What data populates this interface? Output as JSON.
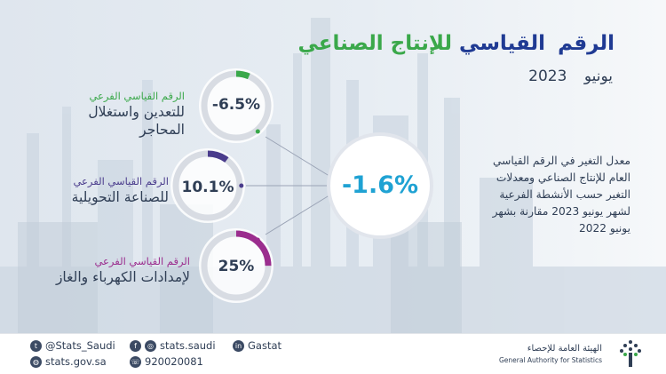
{
  "title": {
    "part1": "الرقم",
    "part2": "القياسي",
    "part3": "للإنتاج الصناعي"
  },
  "subtitle": {
    "month": "يونيو",
    "year": "2023"
  },
  "description": [
    "معدل التغير في الرقم القياسي",
    "العام للإنتاج الصناعي ومعدلات",
    "التغير حسب الأنشطة الفرعية",
    "لشهر يونيو 2023 مقارنة بشهر",
    "يونيو 2022"
  ],
  "main_value": "-1.6%",
  "sub_indices": [
    {
      "small": "الرقم القياسي الفرعي",
      "main1": "للتعدين واستغلال",
      "main2": "المحاجر",
      "value": "-6.5%",
      "fill": 0.065,
      "color": "#3aa84a"
    },
    {
      "small": "الرقم القياسي الفرعي",
      "main1": "للصناعة التحويلية",
      "main2": "",
      "value": "10.1%",
      "fill": 0.101,
      "color": "#4a3c8c"
    },
    {
      "small": "الرقم القياسي الفرعي",
      "main1": "لإمدادات الكهرباء والغاز",
      "main2": "",
      "value": "25%",
      "fill": 0.25,
      "color": "#9b2d8e"
    }
  ],
  "colors": {
    "main_value": "#1fa2d3",
    "ring_track": "#d8dce3",
    "text": "#2f3e55"
  },
  "footer": {
    "twitter": "@Stats_Saudi",
    "fb_insta": "stats.saudi",
    "linkedin": "Gastat",
    "website": "stats.gov.sa",
    "phone": "920020081",
    "logo_ar": "الهيئة العامة للإحصاء",
    "logo_en": "General Authority for Statistics"
  },
  "icons": [
    "twitter-icon",
    "facebook-icon",
    "instagram-icon",
    "linkedin-icon",
    "globe-icon",
    "phone-icon"
  ]
}
